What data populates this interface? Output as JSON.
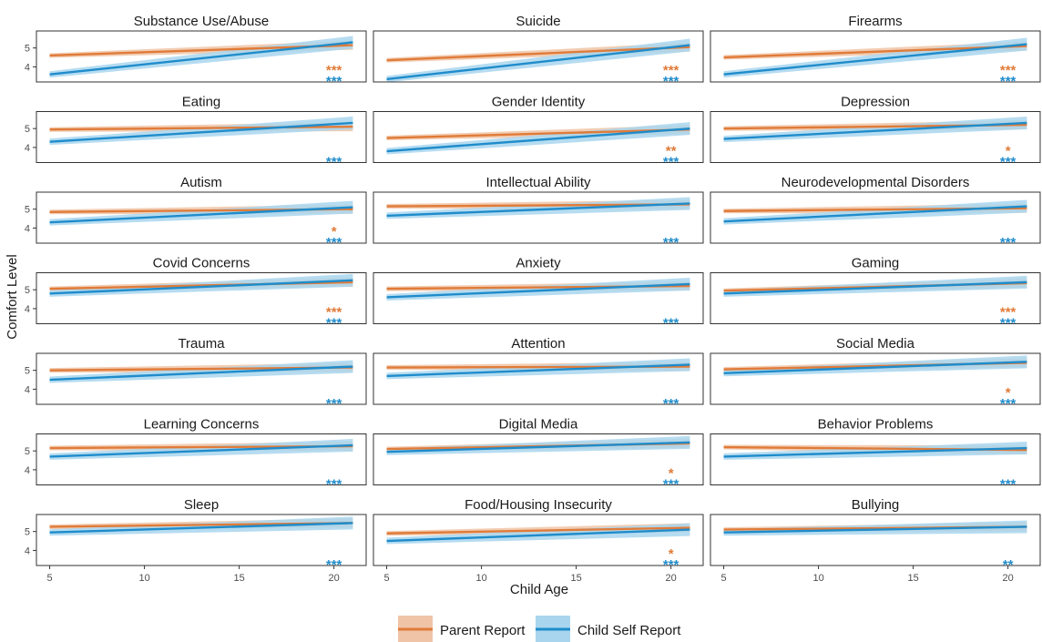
{
  "chart_data": {
    "type": "line",
    "xlabel": "Child Age",
    "ylabel": "Comfort Level",
    "xlim": [
      4.3,
      21.7
    ],
    "ylim": [
      3.2,
      5.9
    ],
    "x_ticks": [
      5,
      10,
      15,
      20
    ],
    "y_ticks": [
      4,
      5
    ],
    "grid": false,
    "legend_position": "bottom",
    "series_styles": [
      {
        "name": "Parent Report",
        "color": "#E07B39",
        "band": "#F0C4A6"
      },
      {
        "name": "Child Self Report",
        "color": "#1F8CCB",
        "band": "#A9D6EE"
      }
    ],
    "panels": [
      {
        "title": "Substance Use/Abuse",
        "parent": [
          4.6,
          5.15
        ],
        "child": [
          3.6,
          5.3
        ],
        "sig_parent": "***",
        "sig_child": "***"
      },
      {
        "title": "Suicide",
        "parent": [
          4.35,
          5.05
        ],
        "child": [
          3.35,
          5.15
        ],
        "sig_parent": "***",
        "sig_child": "***"
      },
      {
        "title": "Firearms",
        "parent": [
          4.5,
          5.1
        ],
        "child": [
          3.6,
          5.2
        ],
        "sig_parent": "***",
        "sig_child": "***"
      },
      {
        "title": "Eating",
        "parent": [
          4.95,
          5.1
        ],
        "child": [
          4.3,
          5.3
        ],
        "sig_parent": "",
        "sig_child": "***"
      },
      {
        "title": "Gender Identity",
        "parent": [
          4.5,
          4.95
        ],
        "child": [
          3.8,
          5.0
        ],
        "sig_parent": "**",
        "sig_child": "***"
      },
      {
        "title": "Depression",
        "parent": [
          5.0,
          5.2
        ],
        "child": [
          4.45,
          5.3
        ],
        "sig_parent": "*",
        "sig_child": "***"
      },
      {
        "title": "Autism",
        "parent": [
          4.85,
          5.0
        ],
        "child": [
          4.3,
          5.1
        ],
        "sig_parent": "*",
        "sig_child": "***"
      },
      {
        "title": "Intellectual Ability",
        "parent": [
          5.15,
          5.25
        ],
        "child": [
          4.65,
          5.3
        ],
        "sig_parent": "",
        "sig_child": "***"
      },
      {
        "title": "Neurodevelopmental Disorders",
        "parent": [
          4.9,
          5.05
        ],
        "child": [
          4.35,
          5.15
        ],
        "sig_parent": "",
        "sig_child": "***"
      },
      {
        "title": "Covid Concerns",
        "parent": [
          5.05,
          5.4
        ],
        "child": [
          4.8,
          5.5
        ],
        "sig_parent": "***",
        "sig_child": "***"
      },
      {
        "title": "Anxiety",
        "parent": [
          5.05,
          5.2
        ],
        "child": [
          4.6,
          5.3
        ],
        "sig_parent": "",
        "sig_child": "***"
      },
      {
        "title": "Gaming",
        "parent": [
          4.95,
          5.35
        ],
        "child": [
          4.8,
          5.4
        ],
        "sig_parent": "***",
        "sig_child": "***"
      },
      {
        "title": "Trauma",
        "parent": [
          5.0,
          5.15
        ],
        "child": [
          4.5,
          5.2
        ],
        "sig_parent": "",
        "sig_child": "***"
      },
      {
        "title": "Attention",
        "parent": [
          5.15,
          5.2
        ],
        "child": [
          4.7,
          5.3
        ],
        "sig_parent": "",
        "sig_child": "***"
      },
      {
        "title": "Social Media",
        "parent": [
          5.05,
          5.4
        ],
        "child": [
          4.85,
          5.45
        ],
        "sig_parent": "*",
        "sig_child": "***"
      },
      {
        "title": "Learning Concerns",
        "parent": [
          5.15,
          5.25
        ],
        "child": [
          4.7,
          5.3
        ],
        "sig_parent": "",
        "sig_child": "***"
      },
      {
        "title": "Digital Media",
        "parent": [
          5.1,
          5.4
        ],
        "child": [
          4.95,
          5.45
        ],
        "sig_parent": "*",
        "sig_child": "***"
      },
      {
        "title": "Behavior Problems",
        "parent": [
          5.2,
          5.05
        ],
        "child": [
          4.7,
          5.15
        ],
        "sig_parent": "",
        "sig_child": "***"
      },
      {
        "title": "Sleep",
        "parent": [
          5.25,
          5.45
        ],
        "child": [
          4.95,
          5.45
        ],
        "sig_parent": "",
        "sig_child": "***"
      },
      {
        "title": "Food/Housing Insecurity",
        "parent": [
          4.9,
          5.2
        ],
        "child": [
          4.5,
          5.1
        ],
        "sig_parent": "*",
        "sig_child": "***"
      },
      {
        "title": "Bullying",
        "parent": [
          5.1,
          5.25
        ],
        "child": [
          4.95,
          5.25
        ],
        "sig_parent": "",
        "sig_child": "**"
      }
    ]
  }
}
